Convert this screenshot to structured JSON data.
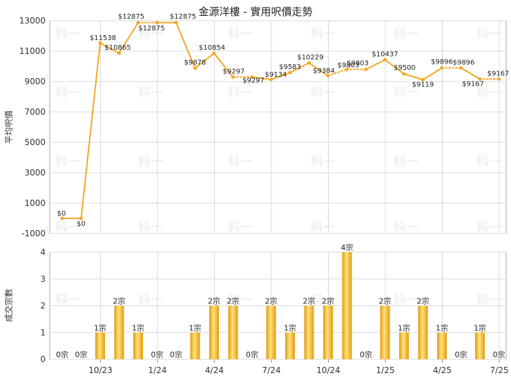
{
  "chart_data": [
    {
      "type": "line",
      "title": "金源洋樓 - 實用呎價走勢",
      "ylabel": "平均呎價",
      "ylim": [
        -1000,
        13000
      ],
      "yticks": [
        "13000",
        "11000",
        "9000",
        "7000",
        "5000",
        "3000",
        "1000",
        "-1000"
      ],
      "xtick_labels": [
        "10/23",
        "1/24",
        "4/24",
        "7/24",
        "10/24",
        "1/25",
        "4/25",
        "7/25"
      ],
      "grid": true,
      "watermark": "科一",
      "color": "#f5a623",
      "points": [
        {
          "month": "2023-08",
          "value": 0,
          "label": "$0",
          "estimated": true
        },
        {
          "month": "2023-09",
          "value": 0,
          "label": "$0",
          "estimated": false
        },
        {
          "month": "2023-10",
          "value": 11538,
          "label": "$11538",
          "estimated": false
        },
        {
          "month": "2023-11",
          "value": 10865,
          "label": "$10865",
          "estimated": false
        },
        {
          "month": "2023-12",
          "value": 12875,
          "label": "$12875",
          "estimated": false
        },
        {
          "month": "2024-01",
          "value": 12875,
          "label": "$12875",
          "estimated": true
        },
        {
          "month": "2024-02",
          "value": 12875,
          "label": "$12875",
          "estimated": false
        },
        {
          "month": "2024-03",
          "value": 9878,
          "label": "$9878",
          "estimated": false
        },
        {
          "month": "2024-04",
          "value": 10854,
          "label": "$10854",
          "estimated": false
        },
        {
          "month": "2024-05",
          "value": 9297,
          "label": "$9297",
          "estimated": false
        },
        {
          "month": "2024-06",
          "value": 9297,
          "label": "$9297",
          "estimated": true
        },
        {
          "month": "2024-07",
          "value": 9134,
          "label": "$9134",
          "estimated": false
        },
        {
          "month": "2024-08",
          "value": 9583,
          "label": "$9583",
          "estimated": false
        },
        {
          "month": "2024-09",
          "value": 10229,
          "label": "$10229",
          "estimated": false
        },
        {
          "month": "2024-10",
          "value": 9384,
          "label": "$9384",
          "estimated": false
        },
        {
          "month": "2024-11",
          "value": 9803,
          "label": "$9803",
          "estimated": true
        },
        {
          "month": "2024-12",
          "value": 9803,
          "label": "$9803",
          "estimated": true
        },
        {
          "month": "2025-01",
          "value": 10437,
          "label": "$10437",
          "estimated": false
        },
        {
          "month": "2025-02",
          "value": 9500,
          "label": "$9500",
          "estimated": false
        },
        {
          "month": "2025-03",
          "value": 9119,
          "label": "$9119",
          "estimated": false
        },
        {
          "month": "2025-04",
          "value": 9896,
          "label": "$9896",
          "estimated": false
        },
        {
          "month": "2025-05",
          "value": 9896,
          "label": "$9896",
          "estimated": true
        },
        {
          "month": "2025-06",
          "value": 9167,
          "label": "$9167",
          "estimated": false
        },
        {
          "month": "2025-07",
          "value": 9167,
          "label": "$9167",
          "estimated": true
        }
      ]
    },
    {
      "type": "bar",
      "ylabel": "成交宗數",
      "ylim": [
        0,
        4
      ],
      "yticks": [
        "4",
        "3",
        "2",
        "1",
        "0"
      ],
      "xtick_labels": [
        "10/23",
        "1/24",
        "4/24",
        "7/24",
        "10/24",
        "1/25",
        "4/25",
        "7/25"
      ],
      "grid": true,
      "months": [
        "2023-08",
        "2023-09",
        "2023-10",
        "2023-11",
        "2023-12",
        "2024-01",
        "2024-02",
        "2024-03",
        "2024-04",
        "2024-05",
        "2024-06",
        "2024-07",
        "2024-08",
        "2024-09",
        "2024-10",
        "2024-11",
        "2024-12",
        "2025-01",
        "2025-02",
        "2025-03",
        "2025-04",
        "2025-05",
        "2025-06",
        "2025-07"
      ],
      "values": [
        0,
        0,
        1,
        2,
        1,
        0,
        0,
        1,
        2,
        2,
        0,
        2,
        1,
        2,
        2,
        4,
        0,
        2,
        1,
        2,
        1,
        0,
        1,
        0
      ],
      "bar_labels": [
        "0宗",
        "0宗",
        "1宗",
        "2宗",
        "1宗",
        "0宗",
        "0宗",
        "1宗",
        "2宗",
        "2宗",
        "0宗",
        "2宗",
        "1宗",
        "2宗",
        "2宗",
        "4宗",
        "0宗",
        "2宗",
        "1宗",
        "2宗",
        "1宗",
        "0宗",
        "1宗",
        "0宗"
      ]
    }
  ]
}
